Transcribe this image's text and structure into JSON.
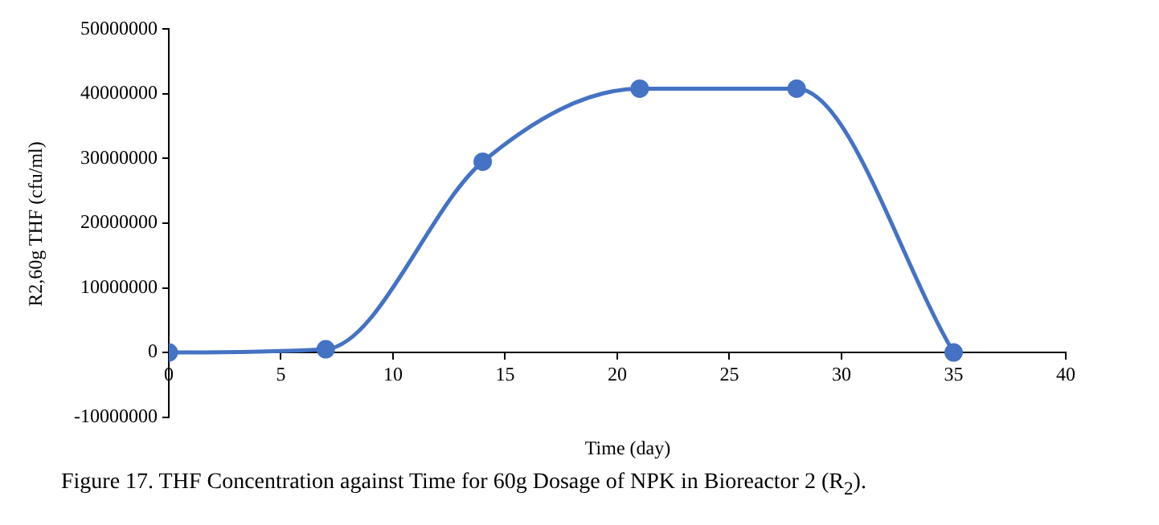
{
  "chart_data": {
    "type": "line",
    "title": "Figure 17. THF Concentration against Time for 60g Dosage of NPK in Bioreactor 2 (R$_{2}$).",
    "xlabel": "Time (day)",
    "ylabel": "R2,60g THF (cfu/ml)",
    "x": [
      0,
      7,
      14,
      21,
      28,
      35
    ],
    "series": [
      {
        "color": "#4472c4",
        "values": [
          0,
          500000,
          29500000,
          40800000,
          40800000,
          0
        ]
      }
    ],
    "xlim": [
      0,
      40
    ],
    "xticks": [
      0,
      5,
      10,
      15,
      20,
      25,
      30,
      35,
      40
    ],
    "ylim": [
      -10000000,
      50000000
    ],
    "yticks": [
      -10000000,
      0,
      10000000,
      20000000,
      30000000,
      40000000,
      50000000
    ],
    "grid": false,
    "legend": false,
    "marker": "circle",
    "line_style": "solid"
  }
}
